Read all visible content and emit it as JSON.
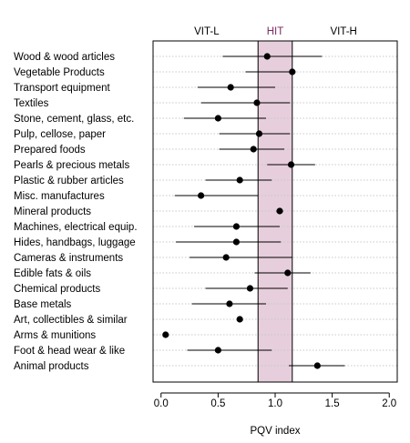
{
  "chart_data": {
    "type": "scatter",
    "xlabel": "PQV index",
    "xlim": [
      -0.07,
      2.07
    ],
    "xticks": [
      0.0,
      0.5,
      1.0,
      1.5,
      2.0
    ],
    "xtick_labels": [
      "0.0",
      "0.5",
      "1.0",
      "1.5",
      "2.0"
    ],
    "grid": "horizontal-dotted",
    "band": {
      "from": 0.85,
      "to": 1.15,
      "color": "#e6cedc"
    },
    "region_labels": [
      {
        "text": "VIT-L",
        "x": 0.4
      },
      {
        "text": "HIT",
        "x": 1.0
      },
      {
        "text": "VIT-H",
        "x": 1.6
      }
    ],
    "categories": [
      "Wood & wood articles",
      "Vegetable Products",
      "Transport equipment",
      "Textiles",
      "Stone, cement, glass, etc.",
      "Pulp, cellose, paper",
      "Prepared foods",
      "Pearls & precious metals",
      "Plastic & rubber articles",
      "Misc. manufactures",
      "Mineral products",
      "Machines, electrical equip.",
      "Hides, handbags, luggage",
      "Cameras & instruments",
      "Edible fats & oils",
      "Chemical products",
      "Base metals",
      "Art, collectibles & similar",
      "Arms & munitions",
      "Foot & head wear & like",
      "Animal products"
    ],
    "values": [
      0.93,
      1.15,
      0.61,
      0.84,
      0.5,
      0.86,
      0.81,
      1.14,
      0.69,
      0.35,
      1.04,
      0.66,
      0.66,
      0.57,
      1.11,
      0.78,
      0.6,
      0.69,
      0.04,
      0.5,
      1.37
    ],
    "lower": [
      0.54,
      0.74,
      0.32,
      0.35,
      0.2,
      0.51,
      0.51,
      0.93,
      0.39,
      0.12,
      1.01,
      0.29,
      0.13,
      0.25,
      0.82,
      0.39,
      0.27,
      0.69,
      0.02,
      0.23,
      1.12
    ],
    "upper": [
      1.41,
      1.18,
      1.0,
      1.13,
      0.92,
      1.13,
      1.08,
      1.35,
      0.97,
      0.85,
      1.07,
      1.04,
      1.05,
      1.15,
      1.31,
      1.11,
      0.92,
      0.69,
      0.06,
      0.97,
      1.61
    ]
  }
}
